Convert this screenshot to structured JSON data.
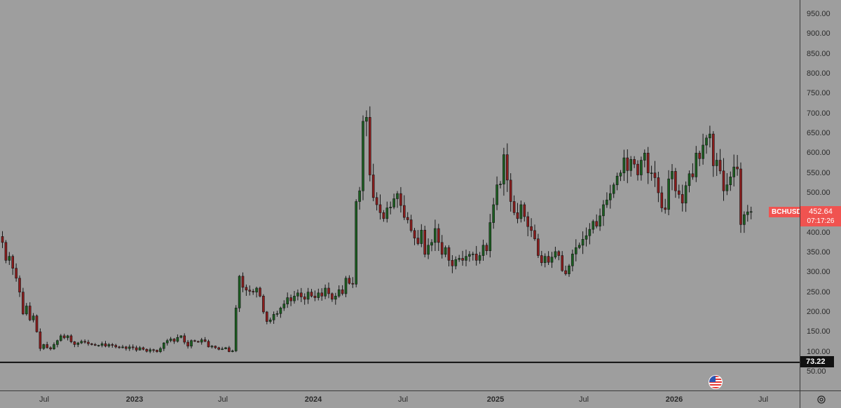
{
  "chart_data": {
    "type": "candlestick",
    "symbol": "BCHUSD",
    "last_price": "452.64",
    "countdown": "07:17:26",
    "horizontal_level": "73.22",
    "ylim": [
      30,
      980
    ],
    "y_ticks": [
      "950.00",
      "900.00",
      "850.00",
      "800.00",
      "750.00",
      "700.00",
      "650.00",
      "600.00",
      "550.00",
      "500.00",
      "450.00",
      "400.00",
      "350.00",
      "300.00",
      "250.00",
      "200.00",
      "150.00",
      "100.00",
      "50.00"
    ],
    "x_ticks": [
      {
        "label": "Jul",
        "bold": false
      },
      {
        "label": "2023",
        "bold": true
      },
      {
        "label": "Jul",
        "bold": false
      },
      {
        "label": "2024",
        "bold": true
      },
      {
        "label": "Jul",
        "bold": false
      },
      {
        "label": "2025",
        "bold": true
      },
      {
        "label": "Jul",
        "bold": false
      },
      {
        "label": "2026",
        "bold": true
      },
      {
        "label": "Jul",
        "bold": false
      }
    ],
    "colors": {
      "up": "#1b5e20",
      "down": "#8b1c1c",
      "wick": "#151515",
      "level": "#111111",
      "price_label": "#f05350",
      "background": "#9e9e9e"
    },
    "closes": [
      375,
      330,
      340,
      310,
      285,
      250,
      195,
      215,
      180,
      190,
      150,
      108,
      118,
      110,
      107,
      118,
      128,
      140,
      135,
      140,
      125,
      118,
      122,
      126,
      124,
      120,
      118,
      116,
      116,
      120,
      114,
      118,
      116,
      112,
      110,
      112,
      108,
      112,
      110,
      104,
      110,
      106,
      101,
      105,
      104,
      100,
      108,
      122,
      128,
      132,
      126,
      136,
      140,
      124,
      114,
      128,
      126,
      124,
      130,
      126,
      112,
      114,
      110,
      106,
      107,
      110,
      100,
      102,
      210,
      290,
      262,
      255,
      252,
      250,
      260,
      240,
      200,
      176,
      180,
      194,
      196,
      210,
      220,
      236,
      228,
      240,
      248,
      238,
      232,
      250,
      240,
      236,
      248,
      240,
      260,
      246,
      232,
      240,
      256,
      246,
      285,
      272,
      270,
      478,
      505,
      680,
      690,
      545,
      488,
      470,
      450,
      435,
      462,
      464,
      485,
      498,
      468,
      438,
      432,
      405,
      386,
      372,
      406,
      345,
      368,
      375,
      410,
      375,
      345,
      362,
      330,
      316,
      332,
      335,
      330,
      340,
      345,
      346,
      330,
      342,
      368,
      354,
      425,
      470,
      520,
      522,
      596,
      532,
      478,
      450,
      435,
      470,
      440,
      415,
      405,
      384,
      342,
      324,
      340,
      325,
      338,
      352,
      342,
      304,
      296,
      316,
      346,
      362,
      368,
      383,
      392,
      408,
      428,
      416,
      442,
      470,
      482,
      498,
      520,
      542,
      550,
      588,
      556,
      584,
      572,
      545,
      582,
      600,
      550,
      550,
      538,
      500,
      462,
      458,
      535,
      554,
      505,
      496,
      474,
      518,
      548,
      540,
      600,
      586,
      620,
      638,
      648,
      568,
      582,
      555,
      505,
      520,
      540,
      565,
      560,
      420,
      445,
      452,
      452.64
    ]
  }
}
